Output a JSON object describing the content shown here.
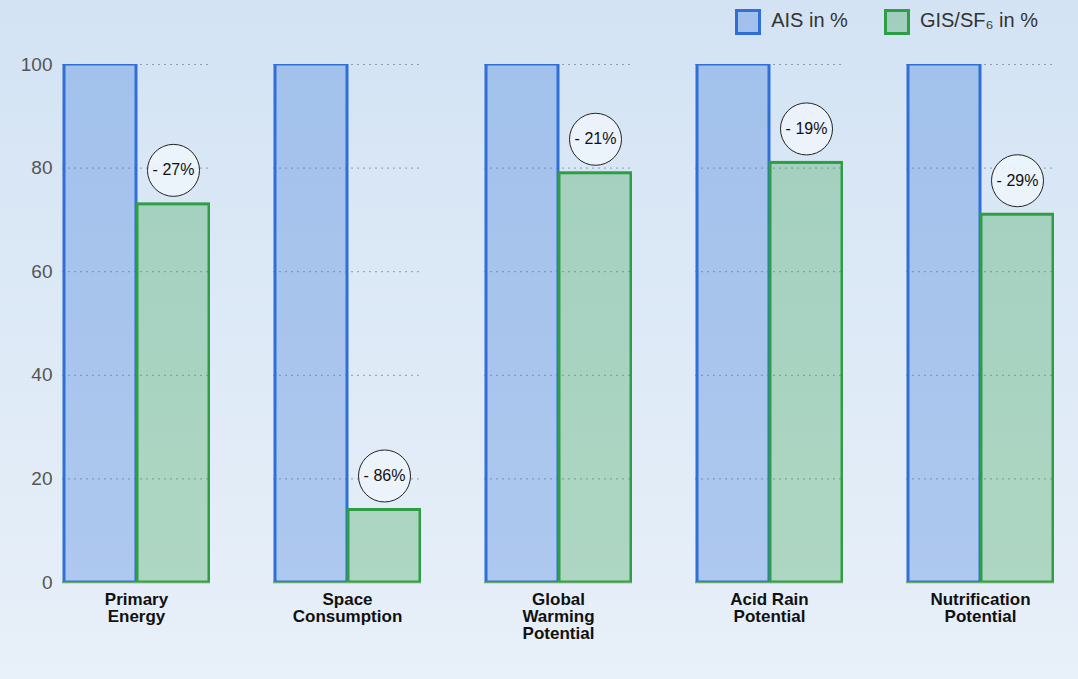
{
  "chart_data": {
    "type": "bar",
    "categories": [
      "Primary Energy",
      "Space Consumption",
      "Global Warming Potential",
      "Acid Rain Potential",
      "Nutrification Potential"
    ],
    "series": [
      {
        "name": "AIS in %",
        "color": "#2f6fd6",
        "values": [
          100,
          100,
          100,
          100,
          100
        ]
      },
      {
        "name": "GIS/SF₆ in %",
        "color": "#2e9e44",
        "values": [
          73,
          14,
          79,
          81,
          71
        ]
      }
    ],
    "annotations": [
      "- 27%",
      "- 86%",
      "- 21%",
      "- 19%",
      "- 29%"
    ],
    "ylim": [
      0,
      100
    ],
    "yticks": [
      0,
      20,
      40,
      60,
      80,
      100
    ],
    "grid": true,
    "legend": "top-right"
  }
}
